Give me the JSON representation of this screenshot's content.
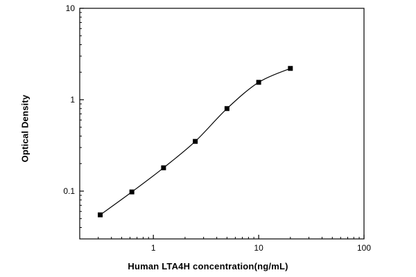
{
  "chart_data": {
    "type": "scatter",
    "title": "",
    "xlabel": "Human LTA4H concentration(ng/mL)",
    "ylabel": "Optical Density",
    "xscale": "log",
    "yscale": "log",
    "xlim": [
      0.2,
      100
    ],
    "ylim": [
      0.03,
      10
    ],
    "x": [
      0.313,
      0.625,
      1.25,
      2.5,
      5,
      10,
      20
    ],
    "y": [
      0.055,
      0.098,
      0.18,
      0.35,
      0.8,
      1.55,
      2.2
    ],
    "x_ticks": [
      1,
      10,
      100
    ],
    "x_tick_labels": [
      "1",
      "10",
      "100"
    ],
    "y_ticks": [
      0.1,
      1,
      10
    ],
    "y_tick_labels": [
      "0.1",
      "1",
      "10"
    ],
    "marker": "filled-square",
    "line": "smooth-fit",
    "colors": {
      "axis": "#000000",
      "marker": "#000000",
      "curve": "#000000",
      "background": "#ffffff"
    },
    "grid": false,
    "legend": "none"
  }
}
